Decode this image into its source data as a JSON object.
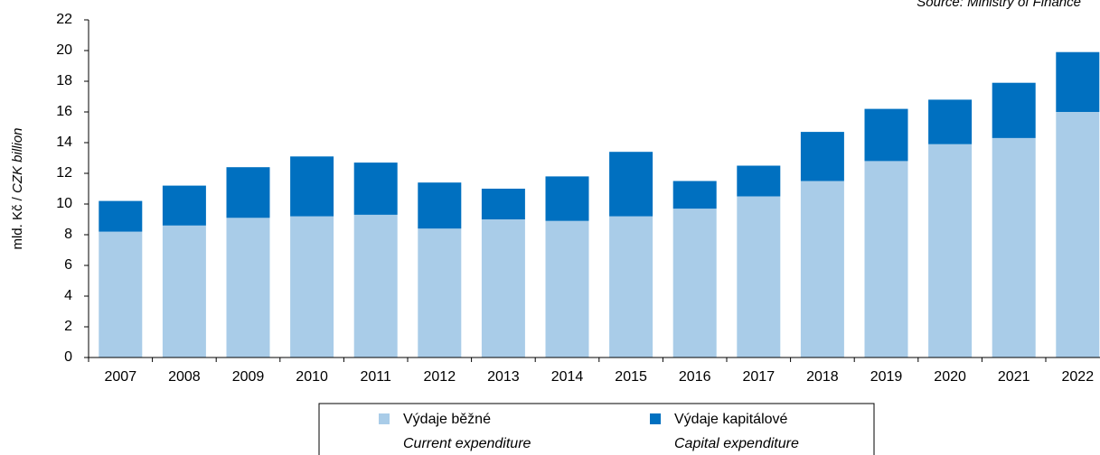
{
  "chart_data": {
    "type": "stacked_bar",
    "source": "Source: Ministry of Finance",
    "ylabel": [
      "mld. Kč / ",
      "CZK billion"
    ],
    "categories": [
      "2007",
      "2008",
      "2009",
      "2010",
      "2011",
      "2012",
      "2013",
      "2014",
      "2015",
      "2016",
      "2017",
      "2018",
      "2019",
      "2020",
      "2021",
      "2022"
    ],
    "series": [
      {
        "name": "Výdaje běžné",
        "name_en": "Current expenditure",
        "color": "#a9cce8",
        "values": [
          8.2,
          8.6,
          9.1,
          9.2,
          9.3,
          8.4,
          9.0,
          8.9,
          9.2,
          9.7,
          10.5,
          11.5,
          12.8,
          13.9,
          14.3,
          16.0
        ]
      },
      {
        "name": "Výdaje kapitálové",
        "name_en": "Capital expenditure",
        "color": "#0070c0",
        "values": [
          2.0,
          2.6,
          3.3,
          3.9,
          3.4,
          3.0,
          2.0,
          2.9,
          4.2,
          1.8,
          2.0,
          3.2,
          3.4,
          2.9,
          3.6,
          3.9
        ]
      }
    ],
    "ylim": [
      0,
      22
    ],
    "yticks": [
      0,
      2,
      4,
      6,
      8,
      10,
      12,
      14,
      16,
      18,
      20,
      22
    ]
  }
}
